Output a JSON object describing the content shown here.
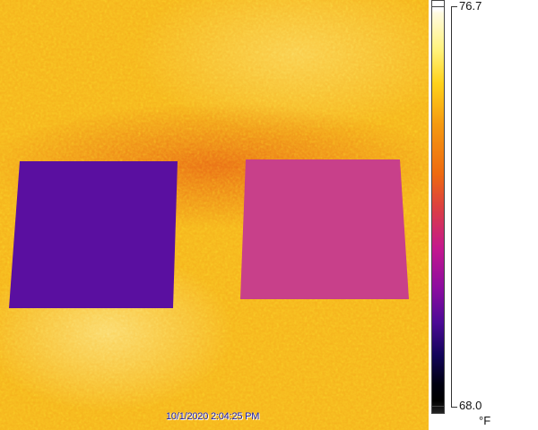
{
  "image": {
    "timestamp": "10/1/2020 2:04:25 PM",
    "palette": "ironbow"
  },
  "scale": {
    "max": "76.7",
    "min": "68.0",
    "unit": "°F",
    "colors": {
      "hot": "#ffffff",
      "mid": "#ee6a10",
      "cool": "#c4188e",
      "cold": "#000000"
    }
  },
  "colors": {
    "background": "#f6b21c",
    "left_object": "#5a0fa0",
    "right_object": "#c8408a"
  }
}
